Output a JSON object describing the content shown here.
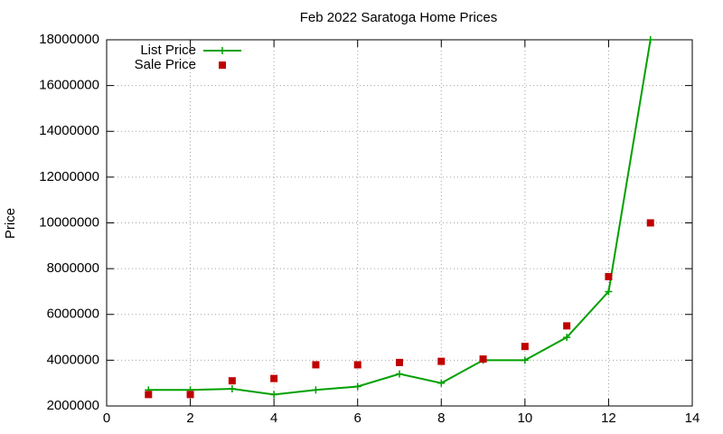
{
  "chart_data": {
    "type": "line",
    "title": "Feb 2022 Saratoga Home Prices",
    "y_label": "Price",
    "x": [
      1,
      2,
      3,
      4,
      5,
      6,
      7,
      8,
      9,
      10,
      11,
      12,
      13
    ],
    "series": [
      {
        "name": "List Price",
        "color": "#00a000",
        "style": "linespoints",
        "values": [
          2700000,
          2700000,
          2750000,
          2500000,
          2700000,
          2850000,
          3400000,
          3000000,
          4000000,
          4000000,
          5000000,
          7000000,
          18000000
        ]
      },
      {
        "name": "Sale Price",
        "color": "#c00000",
        "style": "points",
        "values": [
          2500000,
          2500000,
          3100000,
          3200000,
          3800000,
          3800000,
          3900000,
          3950000,
          4050000,
          4600000,
          5500000,
          7650000,
          10000000
        ]
      }
    ],
    "xlim": [
      0,
      14
    ],
    "xticks": [
      0,
      2,
      4,
      6,
      8,
      10,
      12,
      14
    ],
    "ylim": [
      2000000,
      18000000
    ],
    "yticks": [
      2000000,
      4000000,
      6000000,
      8000000,
      10000000,
      12000000,
      14000000,
      16000000,
      18000000
    ],
    "grid": true,
    "legend": "top-left"
  }
}
